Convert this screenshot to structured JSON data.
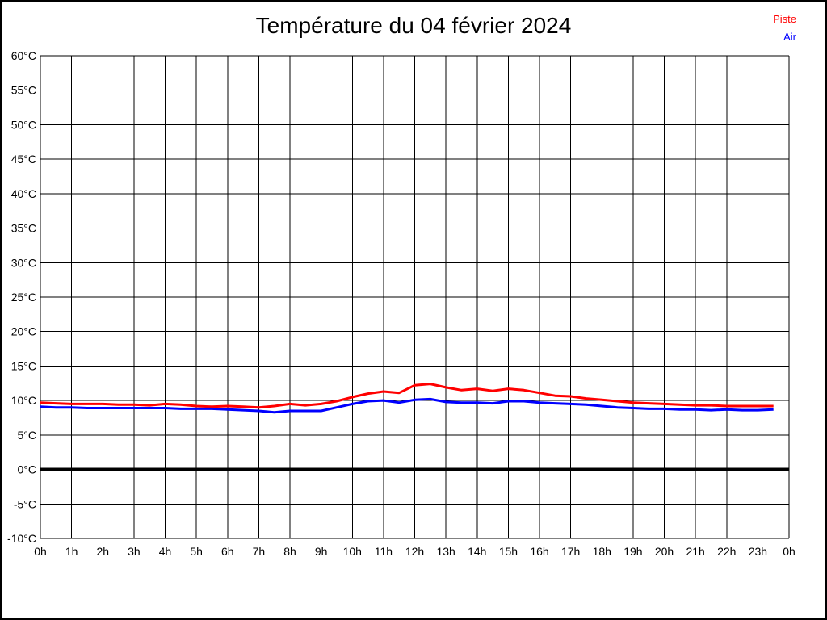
{
  "title": "Température du 04 février 2024",
  "page": {
    "background_color": "#ffffff",
    "border_color": "#000000"
  },
  "legend": {
    "position": "top-right",
    "items": [
      {
        "label": "Piste",
        "color": "#ff0000"
      },
      {
        "label": "Air",
        "color": "#0000ff"
      }
    ]
  },
  "chart_data": {
    "type": "line",
    "title": "Température du 04 février 2024",
    "xlabel": "",
    "ylabel": "",
    "xlim": [
      0,
      24
    ],
    "ylim": [
      -10,
      60
    ],
    "grid": true,
    "grid_color": "#000000",
    "x_tick_values": [
      0,
      1,
      2,
      3,
      4,
      5,
      6,
      7,
      8,
      9,
      10,
      11,
      12,
      13,
      14,
      15,
      16,
      17,
      18,
      19,
      20,
      21,
      22,
      23,
      24
    ],
    "x_tick_labels": [
      "0h",
      "1h",
      "2h",
      "3h",
      "4h",
      "5h",
      "6h",
      "7h",
      "8h",
      "9h",
      "10h",
      "11h",
      "12h",
      "13h",
      "14h",
      "15h",
      "16h",
      "17h",
      "18h",
      "19h",
      "20h",
      "21h",
      "22h",
      "23h",
      "0h"
    ],
    "y_tick_values": [
      60,
      55,
      50,
      45,
      40,
      35,
      30,
      25,
      20,
      15,
      10,
      5,
      0,
      -5,
      -10
    ],
    "y_tick_labels": [
      "60°C",
      "55°C",
      "50°C",
      "45°C",
      "40°C",
      "35°C",
      "30°C",
      "25°C",
      "20°C",
      "15°C",
      "10°C",
      "5°C",
      "0°C",
      "-5°C",
      "-10°C"
    ],
    "zero_line": {
      "value": 0,
      "color": "#000000",
      "width": 4.5
    },
    "line_width": 3,
    "x": [
      0,
      0.5,
      1,
      1.5,
      2,
      2.5,
      3,
      3.5,
      4,
      4.5,
      5,
      5.5,
      6,
      6.5,
      7,
      7.5,
      8,
      8.5,
      9,
      9.5,
      10,
      10.5,
      11,
      11.5,
      12,
      12.5,
      13,
      13.5,
      14,
      14.5,
      15,
      15.5,
      16,
      16.5,
      17,
      17.5,
      18,
      18.5,
      19,
      19.5,
      20,
      20.5,
      21,
      21.5,
      22,
      22.5,
      23,
      23.5
    ],
    "series": [
      {
        "name": "Piste",
        "color": "#ff0000",
        "values": [
          9.7,
          9.6,
          9.5,
          9.5,
          9.5,
          9.4,
          9.4,
          9.3,
          9.5,
          9.4,
          9.2,
          9.1,
          9.2,
          9.1,
          9.0,
          9.2,
          9.5,
          9.3,
          9.5,
          9.9,
          10.5,
          11.0,
          11.3,
          11.1,
          12.2,
          12.4,
          11.9,
          11.5,
          11.7,
          11.4,
          11.7,
          11.5,
          11.1,
          10.7,
          10.6,
          10.3,
          10.1,
          9.9,
          9.7,
          9.6,
          9.5,
          9.4,
          9.3,
          9.3,
          9.2,
          9.2,
          9.2,
          9.2
        ]
      },
      {
        "name": "Air",
        "color": "#0000ff",
        "values": [
          9.1,
          9.0,
          9.0,
          8.9,
          8.9,
          8.9,
          8.9,
          8.9,
          8.9,
          8.8,
          8.8,
          8.8,
          8.7,
          8.6,
          8.5,
          8.3,
          8.5,
          8.5,
          8.5,
          9.0,
          9.5,
          9.9,
          10.0,
          9.7,
          10.1,
          10.2,
          9.8,
          9.7,
          9.7,
          9.6,
          9.9,
          9.9,
          9.7,
          9.6,
          9.5,
          9.4,
          9.2,
          9.0,
          8.9,
          8.8,
          8.8,
          8.7,
          8.7,
          8.6,
          8.7,
          8.6,
          8.6,
          8.7
        ]
      }
    ]
  }
}
